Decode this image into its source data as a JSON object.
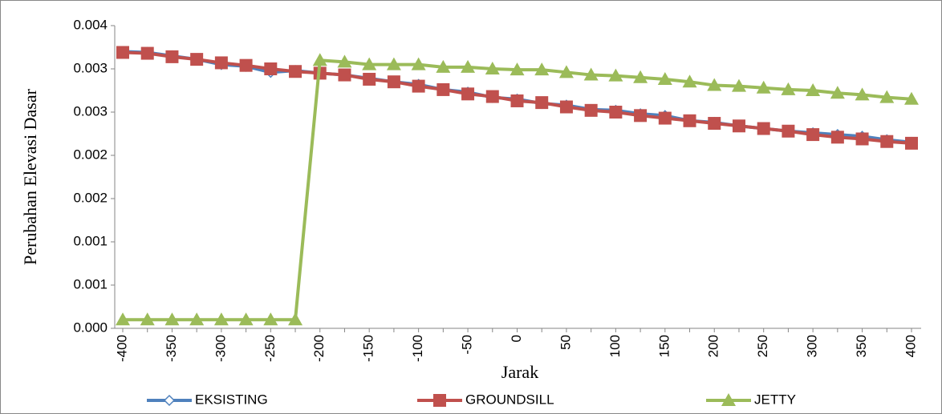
{
  "chart_data": {
    "type": "line",
    "x_label": "Jarak",
    "y_label": "Perubahan Elevasi Dasar",
    "categories": [
      -400,
      null,
      -350,
      null,
      -300,
      null,
      -250,
      null,
      -200,
      null,
      -150,
      null,
      -100,
      null,
      -50,
      null,
      0,
      null,
      50,
      null,
      100,
      null,
      150,
      null,
      200,
      null,
      250,
      null,
      300,
      null,
      350,
      null,
      400
    ],
    "ylim": [
      0,
      0.0035
    ],
    "yticks": [
      {
        "value": 0,
        "label": "0.000"
      },
      {
        "value": 0.0005,
        "label": "0.001"
      },
      {
        "value": 0.001,
        "label": "0.001"
      },
      {
        "value": 0.0015,
        "label": "0.002"
      },
      {
        "value": 0.002,
        "label": "0.002"
      },
      {
        "value": 0.0025,
        "label": "0.003"
      },
      {
        "value": 0.003,
        "label": "0.003"
      },
      {
        "value": 0.0035,
        "label": "0.004"
      }
    ],
    "grid": false,
    "legend": "bottom",
    "series": [
      {
        "name": "EKSISTING",
        "color": "#4f81bd",
        "marker": "diamond",
        "values": [
          0.0032,
          0.00319,
          0.00315,
          0.00311,
          0.00305,
          0.00303,
          0.00296,
          0.00298,
          0.00295,
          0.00293,
          0.00289,
          0.00285,
          0.00282,
          0.00276,
          0.00273,
          0.00267,
          0.00265,
          0.0026,
          0.00258,
          0.00253,
          0.00252,
          0.00248,
          0.00246,
          0.0024,
          0.00238,
          0.00234,
          0.00231,
          0.00228,
          0.00226,
          0.00224,
          0.00222,
          0.00218,
          0.00215
        ]
      },
      {
        "name": "GROUNDSILL",
        "color": "#c0504d",
        "marker": "square",
        "values": [
          0.00319,
          0.00318,
          0.00314,
          0.00311,
          0.00307,
          0.00304,
          0.003,
          0.00297,
          0.00295,
          0.00293,
          0.00288,
          0.00285,
          0.0028,
          0.00276,
          0.00271,
          0.00268,
          0.00263,
          0.00261,
          0.00256,
          0.00252,
          0.0025,
          0.00246,
          0.00243,
          0.0024,
          0.00237,
          0.00234,
          0.00231,
          0.00228,
          0.00224,
          0.00221,
          0.00219,
          0.00216,
          0.00214
        ]
      },
      {
        "name": "JETTY",
        "color": "#9bbb59",
        "marker": "triangle",
        "values": [
          0.0001,
          0.0001,
          0.0001,
          0.0001,
          0.0001,
          0.0001,
          0.0001,
          0.0001,
          0.0031,
          0.00308,
          0.00305,
          0.00305,
          0.00305,
          0.00302,
          0.00302,
          0.003,
          0.00299,
          0.00299,
          0.00296,
          0.00293,
          0.00292,
          0.0029,
          0.00288,
          0.00285,
          0.00281,
          0.0028,
          0.00278,
          0.00276,
          0.00275,
          0.00272,
          0.0027,
          0.00267,
          0.00265
        ]
      }
    ]
  }
}
